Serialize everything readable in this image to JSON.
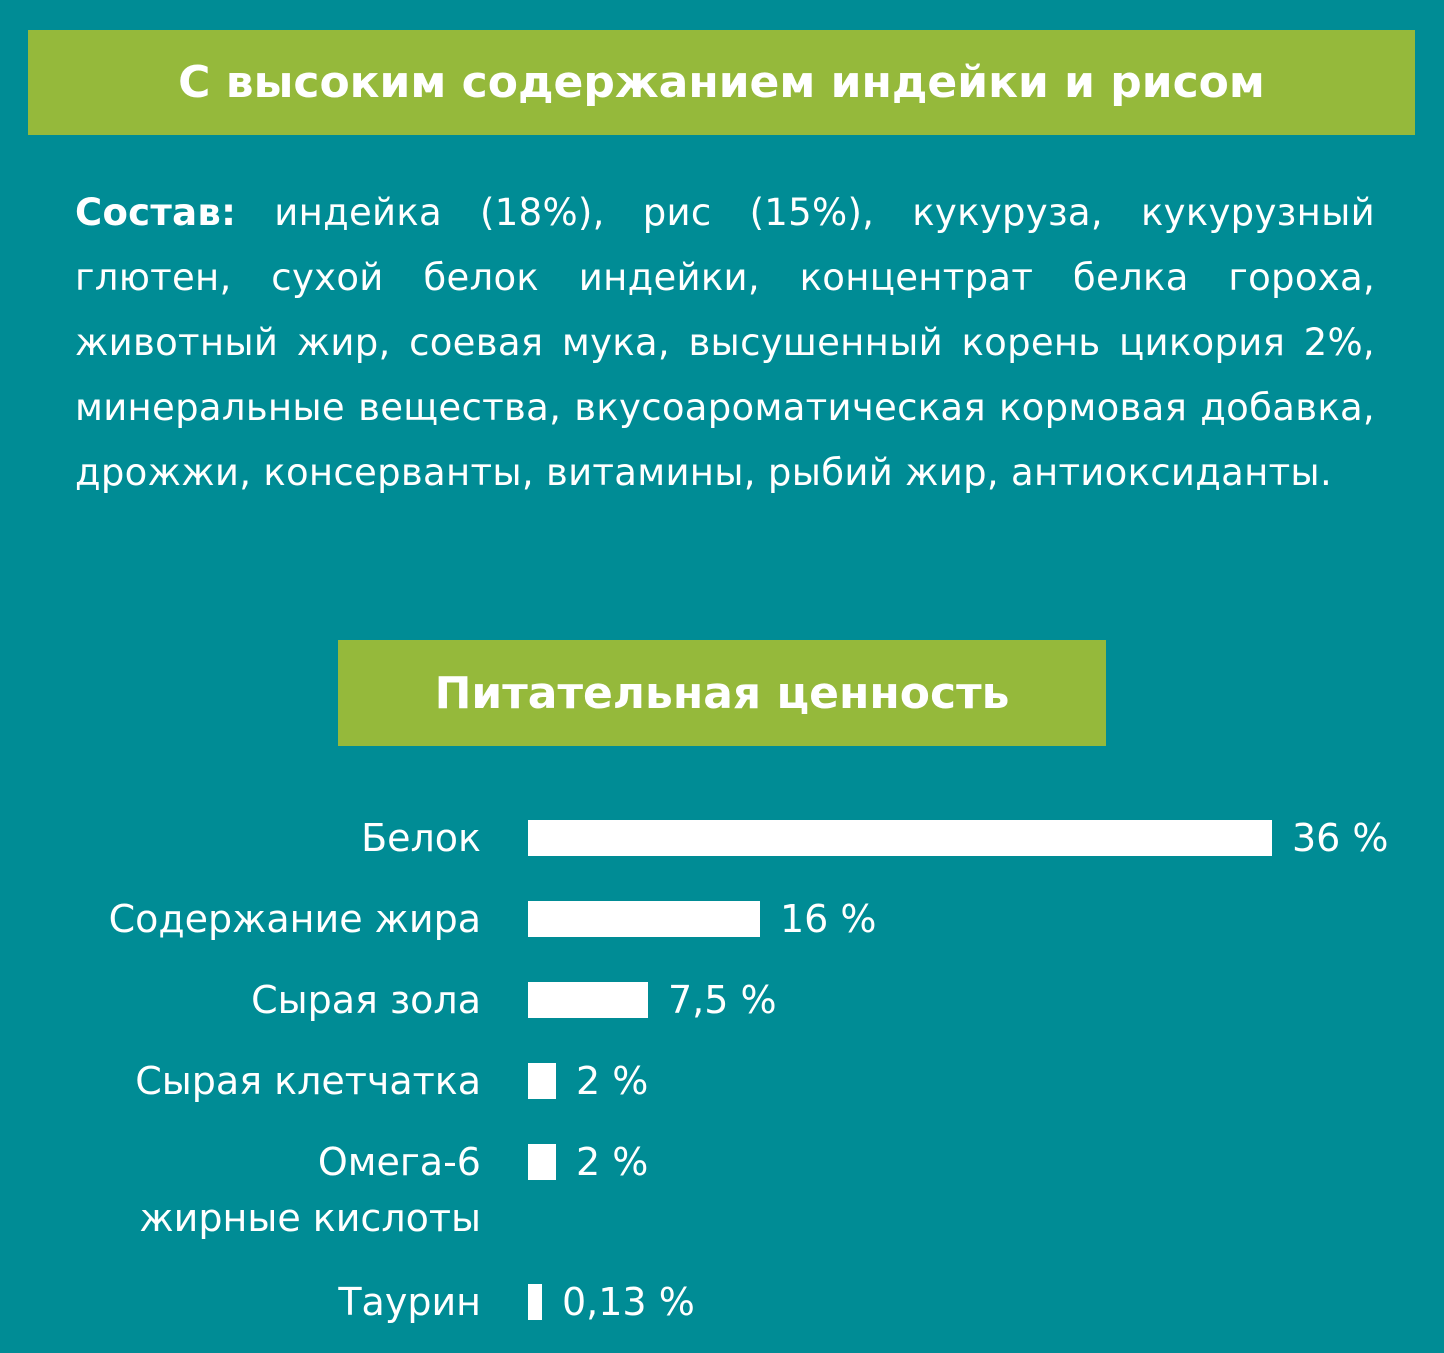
{
  "title": "С высоким содержанием индейки и рисом",
  "composition": {
    "label": "Состав:",
    "text": " индейка (18%), рис (15%), кукуруза, кукурузный глютен, сухой белок индейки, концентрат белка гороха, животный жир, соевая мука, высушенный корень цикория 2%, минеральные вещества, вкусоароматическая кормовая добавка, дрожжи, консерванты, витамины, рыбий жир, антиоксиданты."
  },
  "nutrition_title": "Питательная ценность",
  "colors": {
    "background": "#008c95",
    "banner": "#95b93b",
    "bars": "#ffffff"
  },
  "chart_data": {
    "type": "bar",
    "orientation": "horizontal",
    "categories": [
      "Белок",
      "Содержание жира",
      "Сырая зола",
      "Сырая клетчатка",
      "Омега-6 жирные кислоты",
      "Таурин"
    ],
    "values": [
      36,
      16,
      7.5,
      2,
      2,
      0.13
    ],
    "value_labels": [
      "36 %",
      "16 %",
      "7,5 %",
      "2 %",
      "2 %",
      "0,13 %"
    ],
    "unit": "%"
  }
}
